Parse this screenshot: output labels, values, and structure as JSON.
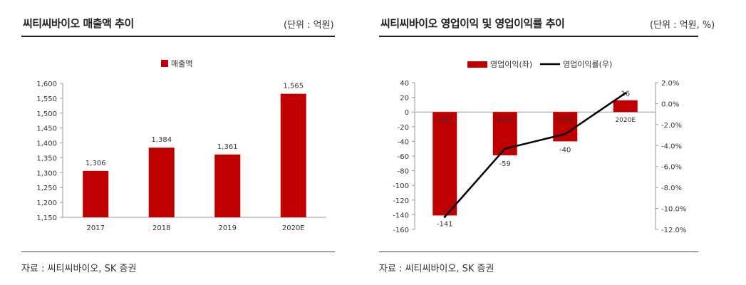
{
  "colors": {
    "bar": "#c00000",
    "line": "#000000",
    "axis": "#999999"
  },
  "left": {
    "title": "씨티씨바이오 매출액 추이",
    "unit": "(단위 : 억원)",
    "source": "자료 : 씨티씨바이오, SK 증권"
  },
  "right": {
    "title": "씨티씨바이오 영업이익 및 영업이익률 추이",
    "unit": "(단위 : 억원, %)",
    "source": "자료 : 씨티씨바이오, SK 증권"
  },
  "chart_data": [
    {
      "type": "bar",
      "categories": [
        "2017",
        "2018",
        "2019",
        "2020E"
      ],
      "series": [
        {
          "name": "매출액",
          "values": [
            1306,
            1384,
            1361,
            1565
          ]
        }
      ],
      "data_labels": [
        "1,306",
        "1,384",
        "1,361",
        "1,565"
      ],
      "ylim": [
        1150,
        1600
      ],
      "yticks": [
        1150,
        1200,
        1250,
        1300,
        1350,
        1400,
        1450,
        1500,
        1550,
        1600
      ],
      "ytick_labels": [
        "1,150",
        "1,200",
        "1,250",
        "1,300",
        "1,350",
        "1,400",
        "1,450",
        "1,500",
        "1,550",
        "1,600"
      ],
      "legend": "top-center",
      "grid": false
    },
    {
      "type": "bar",
      "categories": [
        "2017",
        "2018",
        "2019",
        "2020E"
      ],
      "series": [
        {
          "name": "영업이익(좌)",
          "kind": "bar",
          "axis": "left",
          "values": [
            -141,
            -59,
            -40,
            16
          ]
        },
        {
          "name": "영업이익률(우)",
          "kind": "line",
          "axis": "right",
          "values": [
            -10.8,
            -4.3,
            -2.9,
            1.0
          ]
        }
      ],
      "data_labels": [
        "-141",
        "-59",
        "-40",
        "16"
      ],
      "ylim_left": [
        -160,
        40
      ],
      "yticks_left": [
        40,
        20,
        0,
        -20,
        -40,
        -60,
        -80,
        -100,
        -120,
        -140,
        -160
      ],
      "ytick_labels_left": [
        "40",
        "20",
        "0",
        "-20",
        "-40",
        "-60",
        "-80",
        "-100",
        "-120",
        "-140",
        "-160"
      ],
      "ylim_right": [
        -12,
        2
      ],
      "yticks_right": [
        2,
        0,
        -2,
        -4,
        -6,
        -8,
        -10,
        -12
      ],
      "ytick_labels_right": [
        "2.0%",
        "0.0%",
        "-2.0%",
        "-4.0%",
        "-6.0%",
        "-8.0%",
        "-10.0%",
        "-12.0%"
      ],
      "legend": "top-center",
      "grid": false
    }
  ]
}
